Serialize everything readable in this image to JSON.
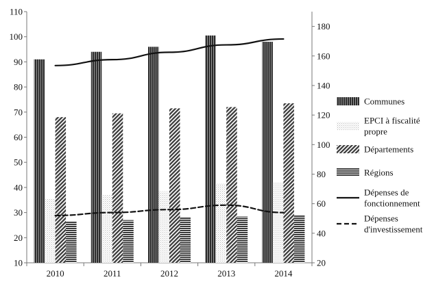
{
  "chart_data": {
    "type": "bar",
    "title": "",
    "xlabel": "",
    "ylabel": "",
    "categories": [
      "2010",
      "2011",
      "2012",
      "2013",
      "2014"
    ],
    "bar_axis": {
      "side": "left",
      "ylim": [
        10,
        110
      ],
      "ticks": [
        "10",
        "20",
        "30",
        "40",
        "50",
        "60",
        "70",
        "80",
        "90",
        "100",
        "110"
      ]
    },
    "line_axis": {
      "side": "right",
      "ylim": [
        20,
        190
      ],
      "ticks": [
        "20",
        "40",
        "60",
        "80",
        "100",
        "120",
        "140",
        "160",
        "180"
      ]
    },
    "series": [
      {
        "name": "Communes",
        "type": "bar",
        "axis": "left",
        "pattern": "dark-vertical",
        "values": [
          91,
          94,
          96,
          100.5,
          98
        ]
      },
      {
        "name": "EPCI à fiscalité propre",
        "label_lines": [
          "EPCI à fiscalité",
          "propre"
        ],
        "type": "bar",
        "axis": "left",
        "pattern": "light-dots",
        "values": [
          35.5,
          37,
          38.5,
          41.5,
          42
        ]
      },
      {
        "name": "Départements",
        "type": "bar",
        "axis": "left",
        "pattern": "diagonal",
        "values": [
          68,
          69.5,
          71.5,
          72,
          73.5
        ]
      },
      {
        "name": "Régions",
        "type": "bar",
        "axis": "left",
        "pattern": "horizontal",
        "values": [
          26.5,
          27,
          28,
          28.5,
          29
        ]
      },
      {
        "name": "Dépenses de fonctionnement",
        "label_lines": [
          "Dépenses de",
          "fonctionnement"
        ],
        "type": "line",
        "axis": "right",
        "style": "solid",
        "values": [
          153.5,
          157.5,
          162.5,
          167.5,
          171.5
        ]
      },
      {
        "name": "Dépenses d'investissement",
        "label_lines": [
          "Dépenses",
          "d'investissement"
        ],
        "type": "line",
        "axis": "right",
        "style": "dashed",
        "values": [
          52,
          54,
          56,
          59,
          54
        ]
      }
    ],
    "legend_position": "right",
    "grid": false,
    "colors": {
      "ink": "#111111",
      "axis": "#777777",
      "background": "#ffffff"
    }
  }
}
